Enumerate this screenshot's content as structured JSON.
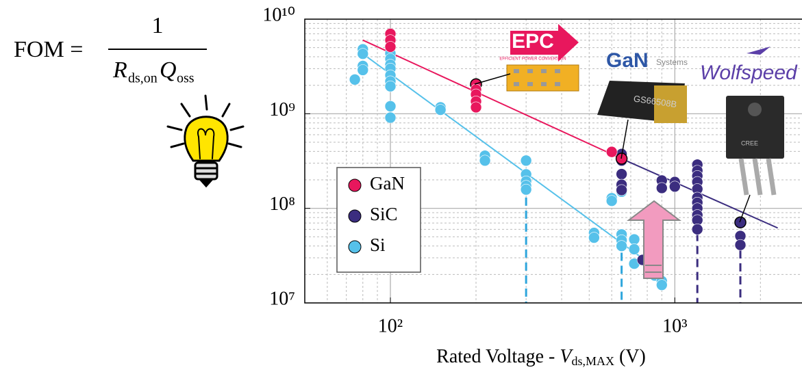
{
  "formula": {
    "lhs": "FOM =",
    "numerator": "1",
    "r": "R",
    "r_sub": "ds,on",
    "q": "Q",
    "q_sub": "oss"
  },
  "logos": {
    "epc": "EPC",
    "epc_tagline": "EFFICIENT POWER CONVERSION",
    "gan": "GaN",
    "systems": "Systems",
    "wolfspeed": "Wolfspeed",
    "chip": "GS66508B",
    "cree": "CREE"
  },
  "chart_data": {
    "type": "scatter",
    "xlabel": {
      "text": "Rated Voltage - ",
      "var": "V",
      "sub": "ds,MAX",
      "unit": " (V)"
    },
    "xscale": "log",
    "yscale": "log",
    "grid": true,
    "legend": "left",
    "xlim": [
      50,
      2800
    ],
    "ylim": [
      10000000,
      10000000000
    ],
    "xticks": [
      {
        "value": 100,
        "label": "10²"
      },
      {
        "value": 1000,
        "label": "10³"
      }
    ],
    "yticks": [
      {
        "value": 10000000,
        "label": "10⁷"
      },
      {
        "value": 100000000,
        "label": "10⁸"
      },
      {
        "value": 1000000000,
        "label": "10⁹"
      },
      {
        "value": 10000000000,
        "label": "10¹⁰"
      }
    ],
    "series": [
      {
        "name": "GaN",
        "color": "#e8175d",
        "highlight": [
          3,
          9
        ],
        "x": [
          100,
          100,
          100,
          200,
          200,
          200,
          200,
          200,
          600,
          650
        ],
        "values": [
          7000000000.0,
          6000000000.0,
          5100000000.0,
          2050000000.0,
          1800000000.0,
          1600000000.0,
          1350000000.0,
          1170000000.0,
          395000000.0,
          335000000.0
        ],
        "fit": {
          "x": [
            80,
            650
          ],
          "values": [
            6000000000.0,
            335000000.0
          ]
        }
      },
      {
        "name": "SiC",
        "color": "#3b2d7f",
        "highlight": [
          20
        ],
        "x": [
          650,
          650,
          650,
          650,
          650,
          900,
          900,
          1000,
          1000,
          1200,
          1200,
          1200,
          1200,
          1200,
          1200,
          1200,
          1200,
          1200,
          1200,
          1200,
          1700,
          1700,
          1700,
          770
        ],
        "values": [
          375000000.0,
          320000000.0,
          230000000.0,
          178000000.0,
          156000000.0,
          197000000.0,
          164000000.0,
          190000000.0,
          170000000.0,
          290000000.0,
          250000000.0,
          220000000.0,
          190000000.0,
          160000000.0,
          130000000.0,
          115000000.0,
          100000000.0,
          85000000.0,
          75000000.0,
          60000000.0,
          71000000.0,
          51000000.0,
          41000000.0,
          28500000.0
        ],
        "fit": {
          "x": [
            650,
            2300
          ],
          "values": [
            335000000.0,
            62000000.0
          ]
        }
      },
      {
        "name": "Si",
        "color": "#56c1ea",
        "highlight": [],
        "x": [
          75,
          80,
          80,
          80,
          80,
          100,
          100,
          100,
          100,
          100,
          100,
          100,
          100,
          100,
          150,
          150,
          215,
          215,
          300,
          300,
          300,
          300,
          300,
          520,
          520,
          600,
          600,
          650,
          650,
          650,
          650,
          650,
          720,
          720,
          720,
          850,
          900,
          900
        ],
        "values": [
          2300000000.0,
          4800000000.0,
          4300000000.0,
          3200000000.0,
          2900000000.0,
          4350000000.0,
          3800000000.0,
          3300000000.0,
          3000000000.0,
          2550000000.0,
          2200000000.0,
          1950000000.0,
          1200000000.0,
          910000000.0,
          1170000000.0,
          1100000000.0,
          360000000.0,
          320000000.0,
          320000000.0,
          229000000.0,
          193000000.0,
          173000000.0,
          158000000.0,
          55000000.0,
          49000000.0,
          128000000.0,
          120000000.0,
          170000000.0,
          150000000.0,
          53000000.0,
          46000000.0,
          40000000.0,
          47000000.0,
          37000000.0,
          26000000.0,
          19500000.0,
          17000000.0,
          15500000.0
        ],
        "fit": {
          "x": [
            80,
            900
          ],
          "values": [
            4300000000.0,
            21000000.0
          ]
        }
      }
    ],
    "dashed_markers": [
      {
        "x": 300,
        "from": 130000000.0,
        "color": "#2fa6dc"
      },
      {
        "x": 650,
        "from": 34000000.0,
        "color": "#2fa6dc"
      },
      {
        "x": 1200,
        "from": 55000000.0,
        "color": "#3b2d7f"
      },
      {
        "x": 1700,
        "from": 36000000.0,
        "color": "#3b2d7f"
      }
    ]
  }
}
